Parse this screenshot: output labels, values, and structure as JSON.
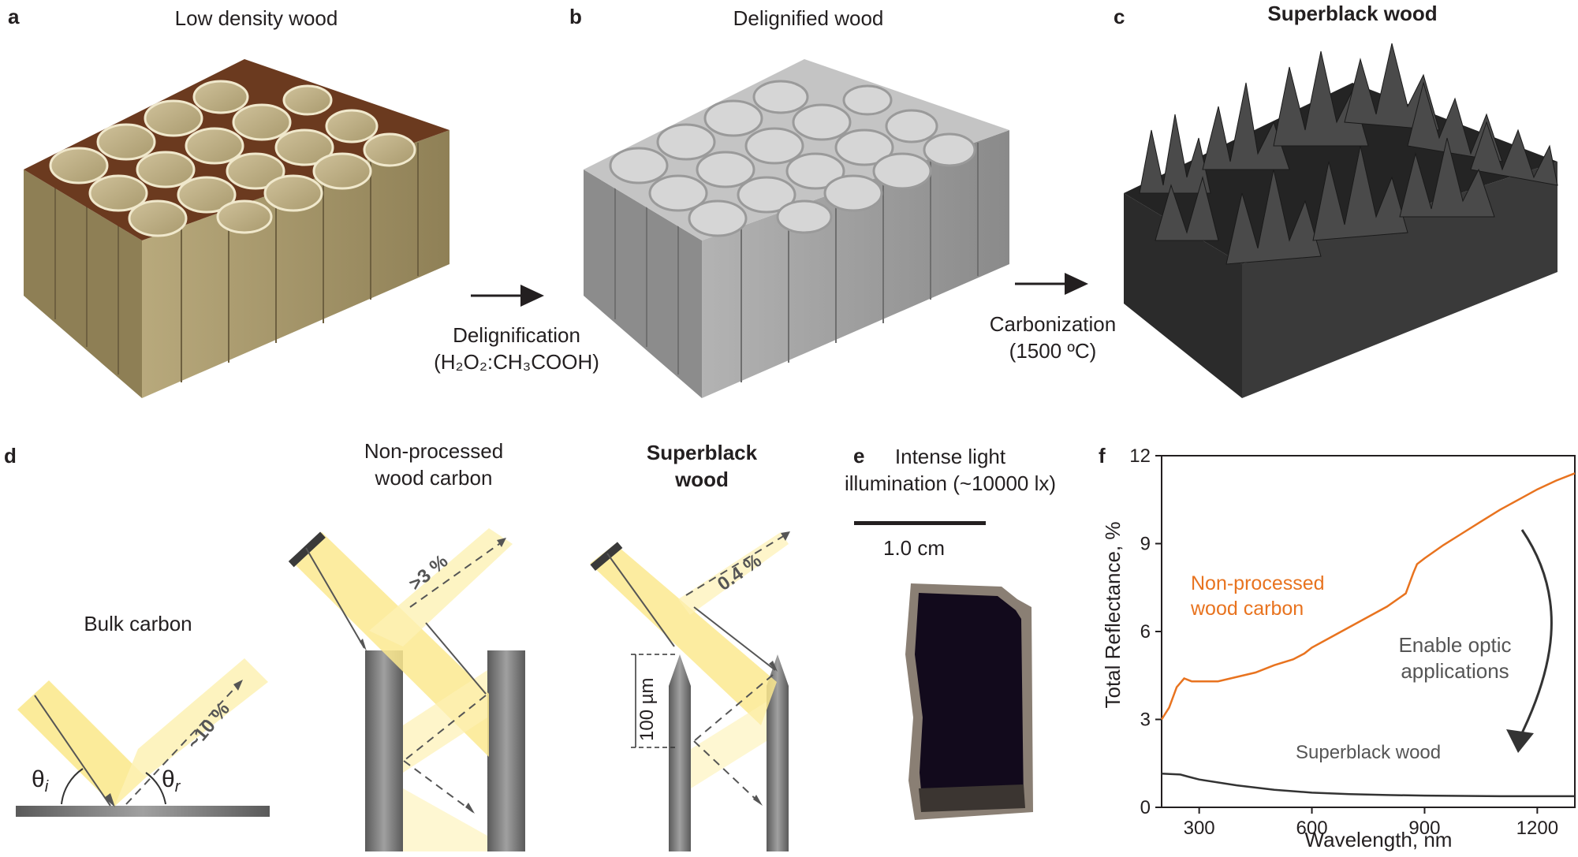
{
  "panels": {
    "a": {
      "letter": "a",
      "title": "Low density wood"
    },
    "b": {
      "letter": "b",
      "title": "Delignified wood"
    },
    "c": {
      "letter": "c",
      "title": "Superblack wood"
    },
    "d": {
      "letter": "d"
    },
    "e": {
      "letter": "e"
    },
    "f": {
      "letter": "f"
    }
  },
  "steps": {
    "delignification": {
      "line1": "Delignification",
      "line2": "(H₂O₂:CH₃COOH)"
    },
    "carbonization": {
      "line1": "Carbonization",
      "line2": "(1500 ºC)"
    }
  },
  "panel_d": {
    "bulk": {
      "title": "Bulk carbon",
      "reflect": "~10 %",
      "theta_i": "θ",
      "theta_i_sub": "i",
      "theta_r": "θ",
      "theta_r_sub": "r"
    },
    "nonprocessed": {
      "title_line1": "Non-processed",
      "title_line2": "wood carbon",
      "reflect": ">3 %"
    },
    "superblack": {
      "title_line1": "Superblack",
      "title_line2": "wood",
      "reflect": "0.4 %",
      "scale": "100 µm"
    }
  },
  "panel_e": {
    "line1": "Intense light",
    "line2": "illumination (~10000 lx)",
    "scale": "1.0 cm"
  },
  "chart_data": {
    "type": "line",
    "xlabel": "Wavelength, nm",
    "ylabel": "Total Reflectance, %",
    "xlim": [
      200,
      1300
    ],
    "ylim": [
      0,
      12
    ],
    "xticks": [
      "300",
      "600",
      "900",
      "1200"
    ],
    "yticks": [
      "0",
      "3",
      "6",
      "9",
      "12"
    ],
    "series": [
      {
        "name": "Non-processed wood carbon",
        "label_line1": "Non-processed",
        "label_line2": "wood carbon",
        "color": "#e8731f",
        "x": [
          200,
          220,
          240,
          260,
          280,
          300,
          350,
          400,
          450,
          500,
          550,
          580,
          600,
          650,
          700,
          750,
          800,
          850,
          870,
          880,
          900,
          950,
          1000,
          1050,
          1100,
          1150,
          1200,
          1250,
          1300
        ],
        "y": [
          3.0,
          3.4,
          4.1,
          4.4,
          4.3,
          4.3,
          4.3,
          4.45,
          4.6,
          4.85,
          5.05,
          5.25,
          5.45,
          5.8,
          6.15,
          6.5,
          6.85,
          7.3,
          8.0,
          8.3,
          8.5,
          8.95,
          9.35,
          9.75,
          10.15,
          10.5,
          10.85,
          11.15,
          11.4
        ]
      },
      {
        "name": "Superblack wood",
        "label": "Superblack wood",
        "color": "#333333",
        "x": [
          200,
          250,
          270,
          300,
          400,
          500,
          600,
          700,
          800,
          900,
          1000,
          1100,
          1200,
          1300
        ],
        "y": [
          1.15,
          1.12,
          1.05,
          0.95,
          0.75,
          0.6,
          0.5,
          0.45,
          0.42,
          0.4,
          0.39,
          0.38,
          0.38,
          0.38
        ]
      }
    ],
    "annotation": {
      "line1": "Enable optic",
      "line2": "applications"
    }
  }
}
